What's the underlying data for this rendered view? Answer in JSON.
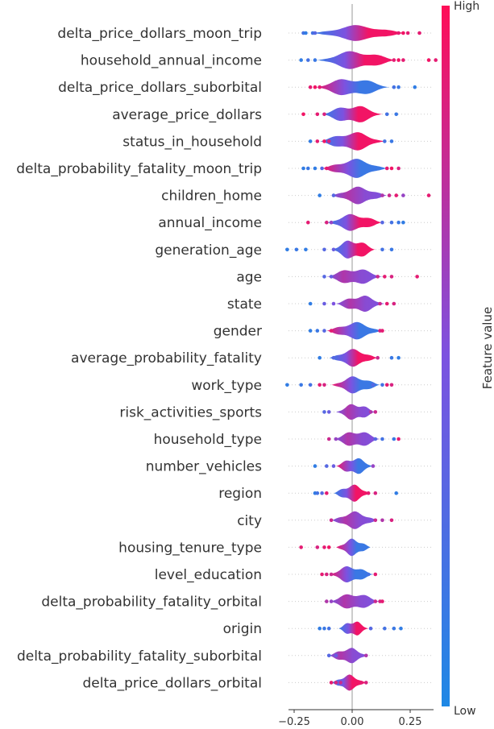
{
  "chart_data": {
    "type": "violin",
    "title": "",
    "xlabel": "",
    "xlim": [
      -0.3,
      0.35
    ],
    "xticks": [
      -0.25,
      0.0,
      0.25
    ],
    "xtick_labels": [
      "−0.25",
      "0.00",
      "0.25"
    ],
    "colorbar": {
      "label": "Feature value",
      "high_label": "High",
      "low_label": "Low",
      "low_color": "#1e88e5",
      "high_color": "#ff0d57"
    },
    "features": [
      {
        "name": "delta_price_dollars_moon_trip",
        "spread": [
          -0.17,
          0.23
        ],
        "width": 10,
        "mode": "hl",
        "points": [
          [
            -0.21,
            0.2
          ],
          [
            -0.2,
            0.1
          ],
          [
            -0.17,
            0.2
          ],
          [
            -0.16,
            0.3
          ],
          [
            0.2,
            0.9
          ],
          [
            0.22,
            0.95
          ],
          [
            0.24,
            0.9
          ],
          [
            0.29,
            0.9
          ]
        ]
      },
      {
        "name": "household_annual_income",
        "spread": [
          -0.15,
          0.19
        ],
        "width": 12,
        "mode": "hl",
        "points": [
          [
            -0.22,
            0.1
          ],
          [
            -0.19,
            0.2
          ],
          [
            -0.16,
            0.15
          ],
          [
            0.18,
            0.9
          ],
          [
            0.2,
            0.95
          ],
          [
            0.22,
            0.9
          ],
          [
            0.33,
            0.95
          ],
          [
            0.36,
            0.9
          ]
        ]
      },
      {
        "name": "delta_price_dollars_suborbital",
        "spread": [
          -0.16,
          0.16
        ],
        "width": 12,
        "mode": "lh",
        "points": [
          [
            -0.18,
            0.9
          ],
          [
            -0.16,
            0.95
          ],
          [
            -0.14,
            0.9
          ],
          [
            0.18,
            0.2
          ],
          [
            0.2,
            0.15
          ],
          [
            0.27,
            0.1
          ]
        ]
      },
      {
        "name": "average_price_dollars",
        "spread": [
          -0.13,
          0.13
        ],
        "width": 12,
        "mode": "hl",
        "points": [
          [
            -0.21,
            0.95
          ],
          [
            -0.15,
            0.9
          ],
          [
            -0.12,
            0.85
          ],
          [
            0.15,
            0.2
          ],
          [
            0.19,
            0.15
          ]
        ]
      },
      {
        "name": "status_in_household",
        "spread": [
          -0.14,
          0.14
        ],
        "width": 12,
        "mode": "hl",
        "points": [
          [
            -0.18,
            0.1
          ],
          [
            -0.15,
            0.9
          ],
          [
            -0.12,
            0.95
          ],
          [
            -0.1,
            0.85
          ],
          [
            0.14,
            0.2
          ],
          [
            0.17,
            0.15
          ]
        ]
      },
      {
        "name": "delta_probability_fatality_moon_trip",
        "spread": [
          -0.13,
          0.15
        ],
        "width": 12,
        "mode": "lh",
        "points": [
          [
            -0.21,
            0.1
          ],
          [
            -0.19,
            0.15
          ],
          [
            -0.16,
            0.1
          ],
          [
            -0.13,
            0.3
          ],
          [
            -0.11,
            0.9
          ],
          [
            0.15,
            0.9
          ],
          [
            0.17,
            0.95
          ],
          [
            0.2,
            0.85
          ]
        ]
      },
      {
        "name": "children_home",
        "spread": [
          -0.09,
          0.15
        ],
        "width": 11,
        "mode": "mid",
        "points": [
          [
            -0.14,
            0.1
          ],
          [
            -0.08,
            0.3
          ],
          [
            0.13,
            0.7
          ],
          [
            0.16,
            0.8
          ],
          [
            0.19,
            0.9
          ],
          [
            0.22,
            0.6
          ],
          [
            0.33,
            0.9
          ]
        ]
      },
      {
        "name": "annual_income",
        "spread": [
          -0.11,
          0.13
        ],
        "width": 11,
        "mode": "hl",
        "points": [
          [
            -0.19,
            0.9
          ],
          [
            -0.11,
            0.85
          ],
          [
            -0.09,
            0.6
          ],
          [
            0.13,
            0.3
          ],
          [
            0.17,
            0.2
          ],
          [
            0.2,
            0.15
          ],
          [
            0.22,
            0.1
          ]
        ]
      },
      {
        "name": "generation_age",
        "spread": [
          -0.09,
          0.1
        ],
        "width": 13,
        "mode": "hl",
        "points": [
          [
            -0.28,
            0.1
          ],
          [
            -0.24,
            0.15
          ],
          [
            -0.2,
            0.1
          ],
          [
            -0.12,
            0.3
          ],
          [
            -0.08,
            0.4
          ],
          [
            0.13,
            0.2
          ],
          [
            0.17,
            0.15
          ]
        ]
      },
      {
        "name": "age",
        "spread": [
          -0.11,
          0.13
        ],
        "width": 11,
        "mode": "mid",
        "points": [
          [
            -0.12,
            0.3
          ],
          [
            -0.09,
            0.4
          ],
          [
            0.11,
            0.8
          ],
          [
            0.14,
            0.9
          ],
          [
            0.17,
            0.85
          ],
          [
            0.28,
            0.9
          ]
        ]
      },
      {
        "name": "state",
        "spread": [
          -0.07,
          0.14
        ],
        "width": 11,
        "mode": "mid",
        "points": [
          [
            -0.18,
            0.1
          ],
          [
            -0.12,
            0.4
          ],
          [
            -0.08,
            0.5
          ],
          [
            0.12,
            0.8
          ],
          [
            0.15,
            0.9
          ],
          [
            0.18,
            0.85
          ]
        ]
      },
      {
        "name": "gender",
        "spread": [
          -0.11,
          0.13
        ],
        "width": 11,
        "mode": "lh",
        "points": [
          [
            -0.18,
            0.1
          ],
          [
            -0.15,
            0.15
          ],
          [
            -0.12,
            0.3
          ],
          [
            -0.09,
            0.9
          ],
          [
            0.12,
            0.85
          ],
          [
            0.13,
            0.9
          ]
        ]
      },
      {
        "name": "average_probability_fatality",
        "spread": [
          -0.1,
          0.11
        ],
        "width": 11,
        "mode": "hl",
        "points": [
          [
            -0.14,
            0.1
          ],
          [
            -0.08,
            0.3
          ],
          [
            0.11,
            0.8
          ],
          [
            0.17,
            0.15
          ],
          [
            0.2,
            0.1
          ]
        ]
      },
      {
        "name": "work_type",
        "spread": [
          -0.09,
          0.12
        ],
        "width": 11,
        "mode": "lh",
        "points": [
          [
            -0.28,
            0.1
          ],
          [
            -0.22,
            0.15
          ],
          [
            -0.18,
            0.2
          ],
          [
            -0.14,
            0.9
          ],
          [
            -0.12,
            0.85
          ],
          [
            0.09,
            0.3
          ],
          [
            0.13,
            0.2
          ],
          [
            0.15,
            0.9
          ],
          [
            0.17,
            0.85
          ]
        ]
      },
      {
        "name": "risk_activities_sports",
        "spread": [
          -0.07,
          0.1
        ],
        "width": 11,
        "mode": "mid",
        "points": [
          [
            -0.12,
            0.3
          ],
          [
            -0.1,
            0.4
          ],
          [
            0.08,
            0.7
          ],
          [
            0.1,
            0.8
          ]
        ]
      },
      {
        "name": "household_type",
        "spread": [
          -0.08,
          0.12
        ],
        "width": 11,
        "mode": "mid",
        "points": [
          [
            -0.1,
            0.8
          ],
          [
            -0.07,
            0.6
          ],
          [
            0.1,
            0.3
          ],
          [
            0.13,
            0.2
          ],
          [
            0.18,
            0.15
          ],
          [
            0.2,
            0.9
          ]
        ]
      },
      {
        "name": "number_vehicles",
        "spread": [
          -0.07,
          0.09
        ],
        "width": 11,
        "mode": "lh",
        "points": [
          [
            -0.16,
            0.1
          ],
          [
            -0.11,
            0.3
          ],
          [
            -0.08,
            0.4
          ],
          [
            0.09,
            0.6
          ]
        ]
      },
      {
        "name": "region",
        "spread": [
          -0.08,
          0.08
        ],
        "width": 11,
        "mode": "hl",
        "points": [
          [
            -0.16,
            0.1
          ],
          [
            -0.15,
            0.2
          ],
          [
            -0.13,
            0.3
          ],
          [
            -0.11,
            0.9
          ],
          [
            0.07,
            0.9
          ],
          [
            0.1,
            0.85
          ],
          [
            0.19,
            0.1
          ]
        ]
      },
      {
        "name": "city",
        "spread": [
          -0.09,
          0.11
        ],
        "width": 11,
        "mode": "mid",
        "points": [
          [
            -0.09,
            0.8
          ],
          [
            0.1,
            0.8
          ],
          [
            0.13,
            0.7
          ],
          [
            0.17,
            0.85
          ]
        ]
      },
      {
        "name": "housing_tenure_type",
        "spread": [
          -0.07,
          0.08
        ],
        "width": 11,
        "mode": "lh",
        "points": [
          [
            -0.22,
            0.9
          ],
          [
            -0.15,
            0.85
          ],
          [
            -0.12,
            0.9
          ],
          [
            -0.1,
            0.95
          ]
        ]
      },
      {
        "name": "level_education",
        "spread": [
          -0.1,
          0.09
        ],
        "width": 11,
        "mode": "lh",
        "points": [
          [
            -0.13,
            0.9
          ],
          [
            -0.11,
            0.85
          ],
          [
            -0.09,
            0.8
          ],
          [
            0.07,
            0.2
          ],
          [
            0.1,
            0.9
          ]
        ]
      },
      {
        "name": "delta_probability_fatality_orbital",
        "spread": [
          -0.1,
          0.12
        ],
        "width": 11,
        "mode": "mid",
        "points": [
          [
            -0.11,
            0.7
          ],
          [
            -0.09,
            0.6
          ],
          [
            0.1,
            0.8
          ],
          [
            0.12,
            0.85
          ],
          [
            0.13,
            0.9
          ]
        ]
      },
      {
        "name": "origin",
        "spread": [
          -0.06,
          0.07
        ],
        "width": 10,
        "mode": "hl",
        "points": [
          [
            -0.14,
            0.1
          ],
          [
            -0.12,
            0.15
          ],
          [
            -0.1,
            0.2
          ],
          [
            0.08,
            0.3
          ],
          [
            0.14,
            0.2
          ],
          [
            0.18,
            0.15
          ],
          [
            0.21,
            0.1
          ]
        ]
      },
      {
        "name": "delta_probability_fatality_suborbital",
        "spread": [
          -0.1,
          0.07
        ],
        "width": 10,
        "mode": "mid",
        "points": [
          [
            -0.1,
            0.3
          ],
          [
            -0.07,
            0.4
          ],
          [
            0.06,
            0.7
          ]
        ]
      },
      {
        "name": "delta_price_dollars_orbital",
        "spread": [
          -0.09,
          0.06
        ],
        "width": 10,
        "mode": "hl",
        "points": [
          [
            -0.09,
            0.9
          ],
          [
            -0.07,
            0.85
          ],
          [
            -0.05,
            0.8
          ],
          [
            0.04,
            0.9
          ],
          [
            0.06,
            0.85
          ]
        ]
      }
    ]
  }
}
